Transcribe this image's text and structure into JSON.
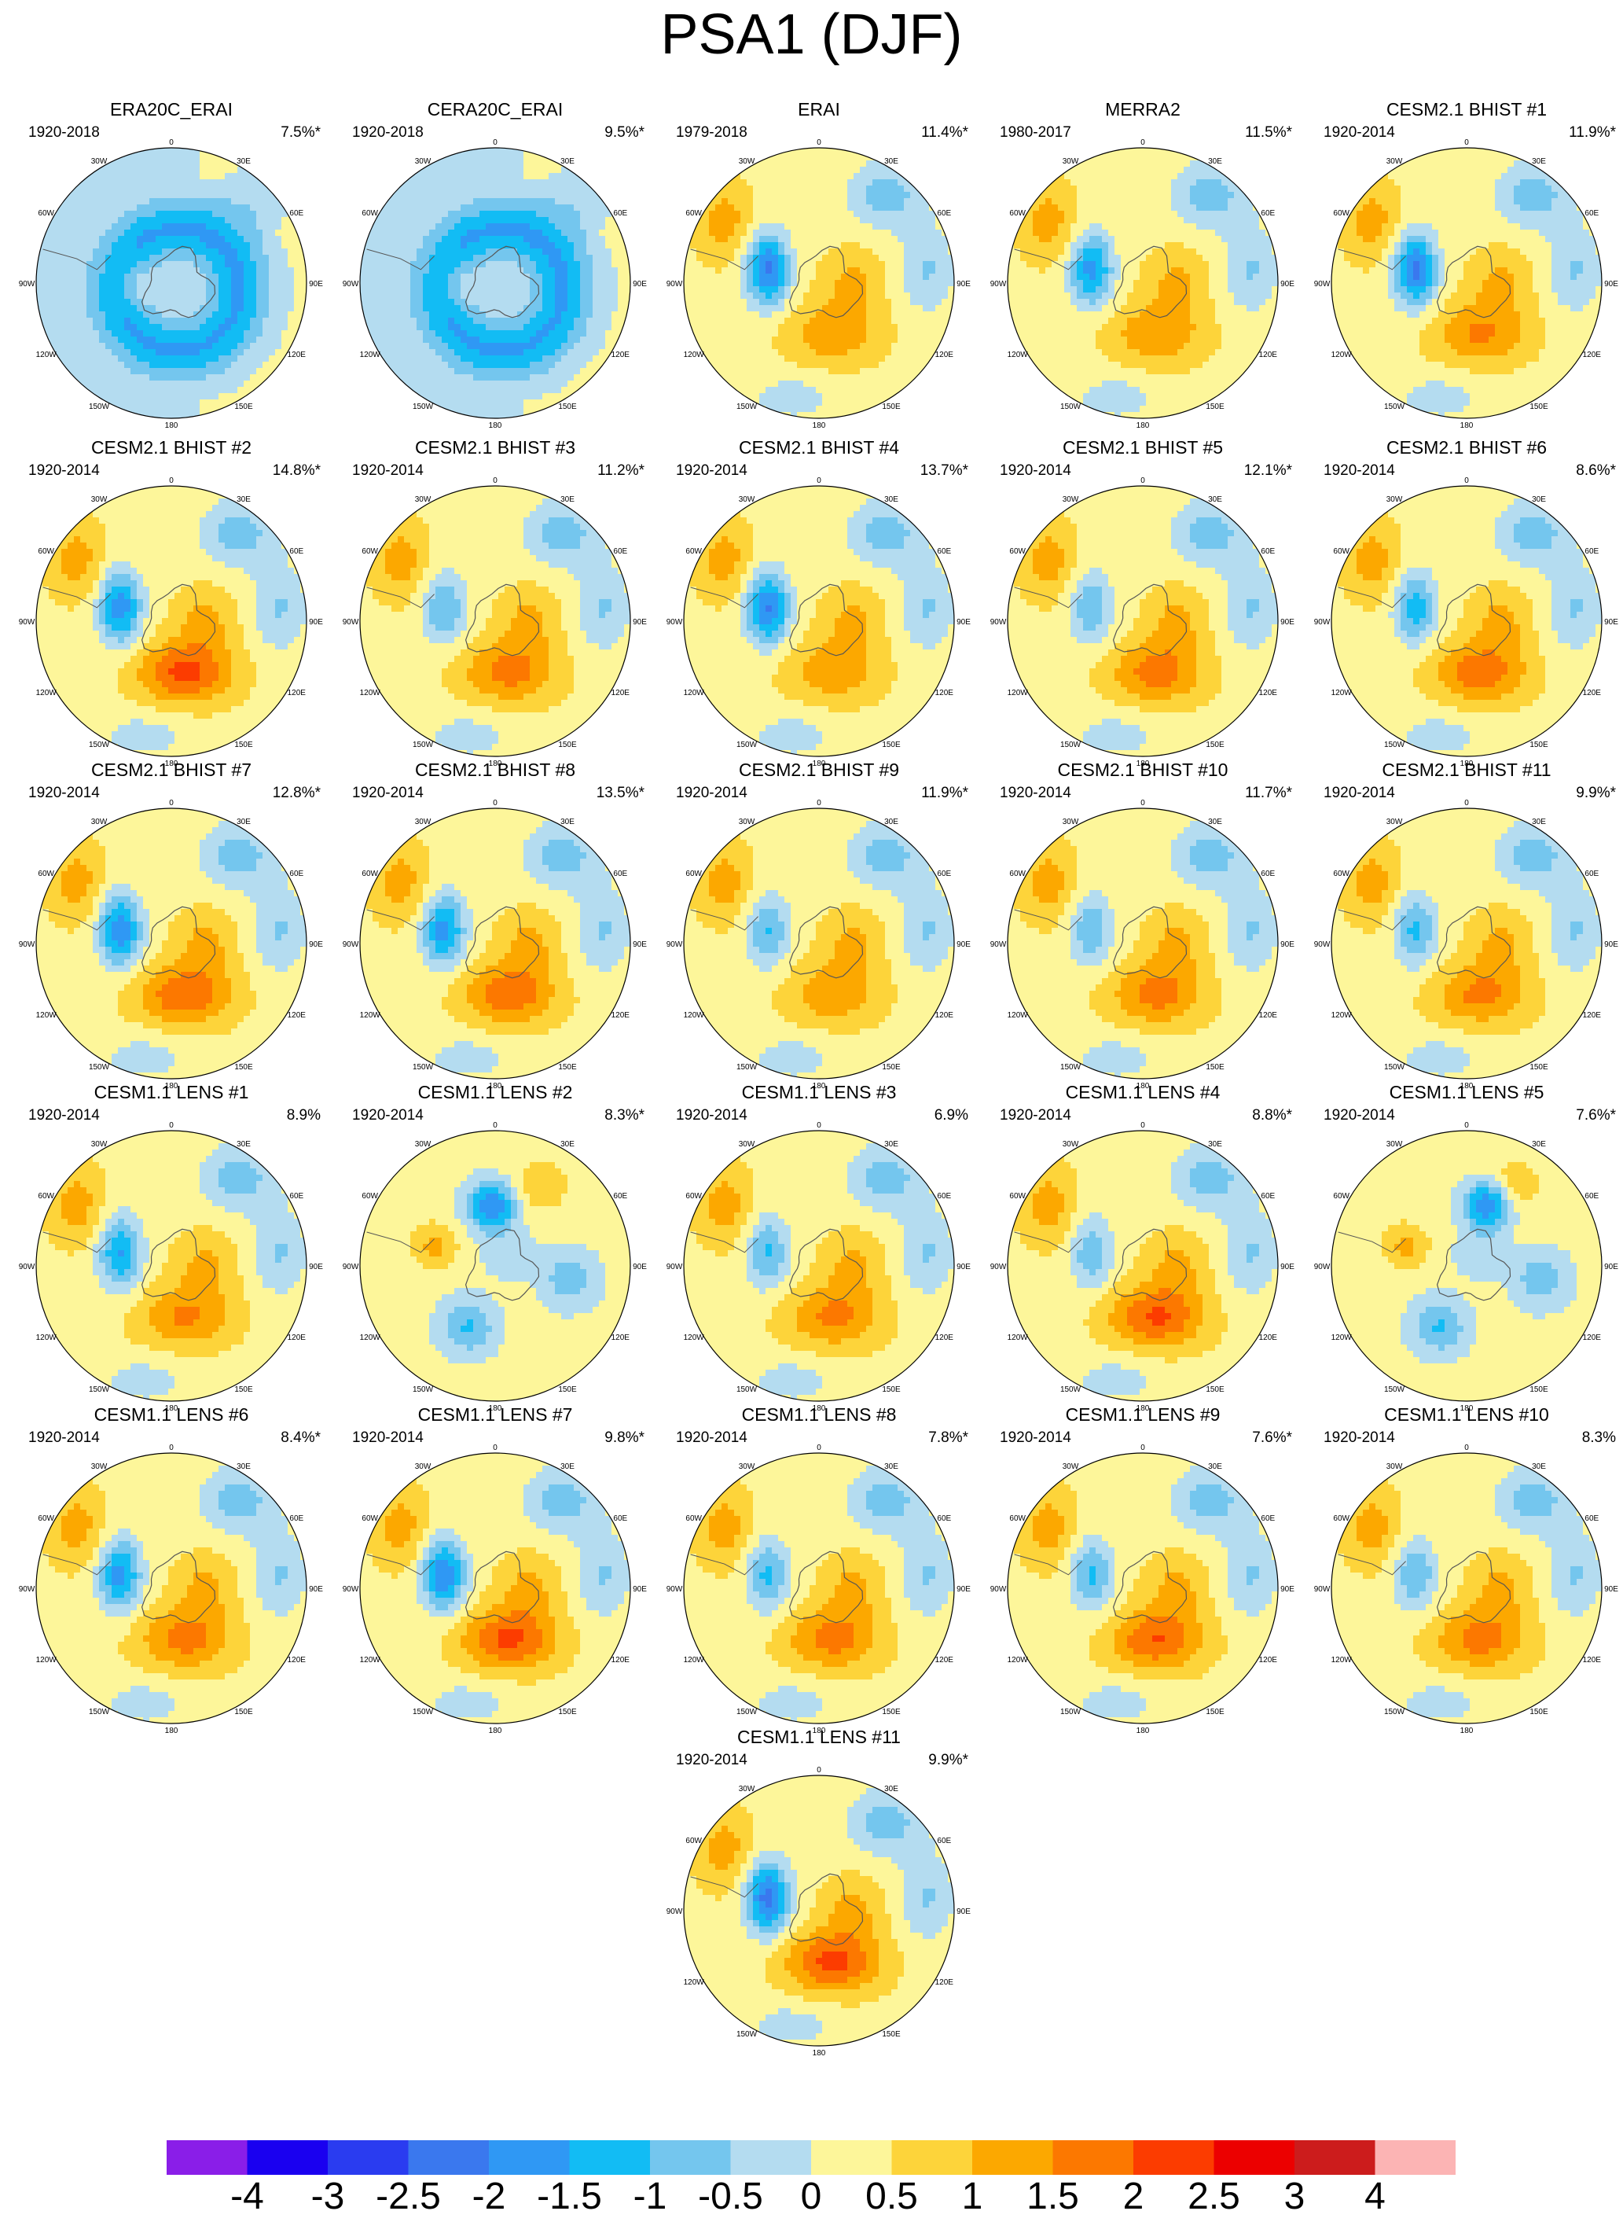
{
  "title": "PSA1 (DJF)",
  "lon_labels": [
    "0",
    "30E",
    "60E",
    "90E",
    "120E",
    "150E",
    "180",
    "150W",
    "120W",
    "90W",
    "60W",
    "30W"
  ],
  "panels": [
    {
      "name": "ERA20C_ERAI",
      "years": "1920-2018",
      "pct": "7.5%*",
      "mode": "blueRing"
    },
    {
      "name": "CERA20C_ERAI",
      "years": "1920-2018",
      "pct": "9.5%*",
      "mode": "blueRing"
    },
    {
      "name": "ERAI",
      "years": "1979-2018",
      "pct": "11.4%*",
      "mode": "psa"
    },
    {
      "name": "MERRA2",
      "years": "1980-2017",
      "pct": "11.5%*",
      "mode": "psa"
    },
    {
      "name": "CESM2.1 BHIST #1",
      "years": "1920-2014",
      "pct": "11.9%*",
      "mode": "psa"
    },
    {
      "name": "CESM2.1 BHIST #2",
      "years": "1920-2014",
      "pct": "14.8%*",
      "mode": "psa"
    },
    {
      "name": "CESM2.1 BHIST #3",
      "years": "1920-2014",
      "pct": "11.2%*",
      "mode": "psa"
    },
    {
      "name": "CESM2.1 BHIST #4",
      "years": "1920-2014",
      "pct": "13.7%*",
      "mode": "psa"
    },
    {
      "name": "CESM2.1 BHIST #5",
      "years": "1920-2014",
      "pct": "12.1%*",
      "mode": "psa"
    },
    {
      "name": "CESM2.1 BHIST #6",
      "years": "1920-2014",
      "pct": "8.6%*",
      "mode": "psa"
    },
    {
      "name": "CESM2.1 BHIST #7",
      "years": "1920-2014",
      "pct": "12.8%*",
      "mode": "psa"
    },
    {
      "name": "CESM2.1 BHIST #8",
      "years": "1920-2014",
      "pct": "13.5%*",
      "mode": "psa"
    },
    {
      "name": "CESM2.1 BHIST #9",
      "years": "1920-2014",
      "pct": "11.9%*",
      "mode": "psa"
    },
    {
      "name": "CESM2.1 BHIST #10",
      "years": "1920-2014",
      "pct": "11.7%*",
      "mode": "psa"
    },
    {
      "name": "CESM2.1 BHIST #11",
      "years": "1920-2014",
      "pct": "9.9%*",
      "mode": "psa"
    },
    {
      "name": "CESM1.1 LENS #1",
      "years": "1920-2014",
      "pct": "8.9%",
      "mode": "psa"
    },
    {
      "name": "CESM1.1 LENS #2",
      "years": "1920-2014",
      "pct": "8.3%*",
      "mode": "mixed"
    },
    {
      "name": "CESM1.1 LENS #3",
      "years": "1920-2014",
      "pct": "6.9%",
      "mode": "psa"
    },
    {
      "name": "CESM1.1 LENS #4",
      "years": "1920-2014",
      "pct": "8.8%*",
      "mode": "psa"
    },
    {
      "name": "CESM1.1 LENS #5",
      "years": "1920-2014",
      "pct": "7.6%*",
      "mode": "mixed"
    },
    {
      "name": "CESM1.1 LENS #6",
      "years": "1920-2014",
      "pct": "8.4%*",
      "mode": "psa"
    },
    {
      "name": "CESM1.1 LENS #7",
      "years": "1920-2014",
      "pct": "9.8%*",
      "mode": "psa"
    },
    {
      "name": "CESM1.1 LENS #8",
      "years": "1920-2014",
      "pct": "7.8%*",
      "mode": "psa"
    },
    {
      "name": "CESM1.1 LENS #9",
      "years": "1920-2014",
      "pct": "7.6%*",
      "mode": "psa"
    },
    {
      "name": "CESM1.1 LENS #10",
      "years": "1920-2014",
      "pct": "8.3%",
      "mode": "psa"
    },
    {
      "name": "CESM1.1 LENS #11",
      "years": "1920-2014",
      "pct": "9.9%*",
      "mode": "psa"
    }
  ],
  "colorbar": {
    "colors": [
      "#8a1ee8",
      "#1a00f0",
      "#2a3cf0",
      "#3a78ee",
      "#2f98f4",
      "#12bcf4",
      "#74c6ee",
      "#b4dcf0",
      "#fdf69a",
      "#fdd43a",
      "#fca800",
      "#fc7800",
      "#fc3c00",
      "#ec0000",
      "#cc1c1c",
      "#fcb4b4"
    ],
    "ticks": [
      "-4",
      "-3",
      "-2.5",
      "-2",
      "-1.5",
      "-1",
      "-0.5",
      "0",
      "0.5",
      "1",
      "1.5",
      "2",
      "2.5",
      "3",
      "4"
    ]
  }
}
